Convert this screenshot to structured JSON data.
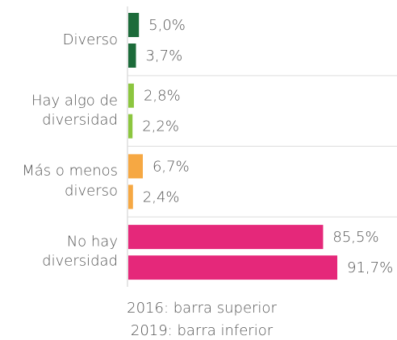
{
  "chart_data": {
    "type": "bar",
    "orientation": "horizontal",
    "categories": [
      "Diverso",
      "Hay algo de diversidad",
      "Más o menos diverso",
      "No hay diversidad"
    ],
    "colors": [
      "#1c6b3a",
      "#8cc63f",
      "#f6a843",
      "#e5287a"
    ],
    "series": [
      {
        "values": [
          5.0,
          2.8,
          6.7,
          85.5
        ],
        "value_labels": [
          "5,0%",
          "2,8%",
          "6,7%",
          "85,5%"
        ]
      },
      {
        "values": [
          3.7,
          2.2,
          2.4,
          91.7
        ],
        "value_labels": [
          "3,7%",
          "2,2%",
          "2,4%",
          "91,7%"
        ]
      }
    ],
    "notes": [
      "2016: barra superior",
      "2019: barra inferior"
    ]
  }
}
